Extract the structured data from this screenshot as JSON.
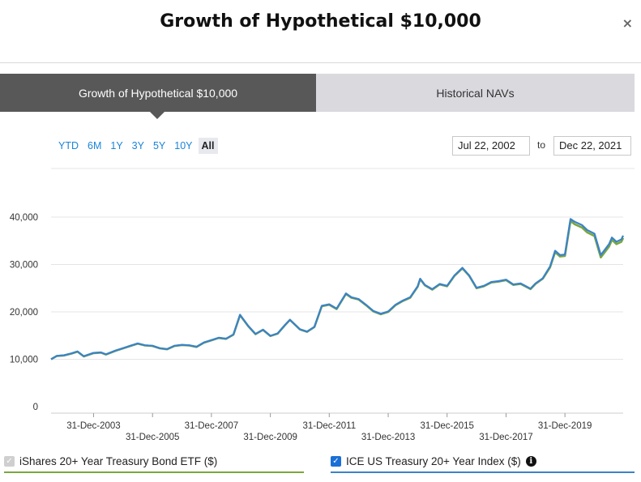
{
  "modal": {
    "title": "Growth of Hypothetical $10,000",
    "close": "×"
  },
  "tabs": [
    {
      "label": "Growth of Hypothetical $10,000",
      "active": true
    },
    {
      "label": "Historical NAVs",
      "active": false
    }
  ],
  "range": {
    "buttons": [
      "YTD",
      "6M",
      "1Y",
      "3Y",
      "5Y",
      "10Y",
      "All"
    ],
    "selected": "All"
  },
  "dates": {
    "from": "Jul 22, 2002",
    "separator": "to",
    "to": "Dec 22, 2021"
  },
  "legend": [
    {
      "label": "iShares 20+ Year Treasury Bond ETF ($)",
      "checked": true,
      "disabled": true,
      "color": "#7aa640"
    },
    {
      "label": "ICE US Treasury 20+ Year Index ($)",
      "checked": true,
      "disabled": false,
      "color": "#3b82c9",
      "info_icon": "info-icon"
    }
  ],
  "colors": {
    "etf": "#7aa640",
    "index": "#3b82c9",
    "tab_active": "#585858",
    "tab_inactive": "#d9d9de",
    "link": "#1a84d8"
  },
  "chart_data": {
    "type": "line",
    "title": "",
    "xlabel": "",
    "ylabel": "",
    "xlim": [
      "2002-07-22",
      "2021-12-22"
    ],
    "ylim": [
      0,
      40000
    ],
    "grid": true,
    "yticks": [
      "0",
      "10,000",
      "20,000",
      "30,000",
      "40,000"
    ],
    "xticks": [
      {
        "label": "31-Dec-2003",
        "x": "2003-12-31"
      },
      {
        "label": "31-Dec-2005",
        "x": "2005-12-31"
      },
      {
        "label": "31-Dec-2007",
        "x": "2007-12-31"
      },
      {
        "label": "31-Dec-2009",
        "x": "2009-12-31"
      },
      {
        "label": "31-Dec-2011",
        "x": "2011-12-31"
      },
      {
        "label": "31-Dec-2013",
        "x": "2013-12-31"
      },
      {
        "label": "31-Dec-2015",
        "x": "2015-12-31"
      },
      {
        "label": "31-Dec-2017",
        "x": "2017-12-31"
      },
      {
        "label": "31-Dec-2019",
        "x": "2019-12-31"
      }
    ],
    "x": [
      "2002-07-22",
      "2002-10-01",
      "2003-01-01",
      "2003-04-01",
      "2003-06-15",
      "2003-09-01",
      "2003-12-31",
      "2004-04-01",
      "2004-06-01",
      "2004-09-30",
      "2004-12-31",
      "2005-03-31",
      "2005-06-30",
      "2005-09-30",
      "2005-12-31",
      "2006-03-31",
      "2006-06-30",
      "2006-09-30",
      "2006-12-31",
      "2007-03-31",
      "2007-06-30",
      "2007-09-30",
      "2007-12-31",
      "2008-03-31",
      "2008-06-30",
      "2008-09-30",
      "2008-12-20",
      "2009-03-31",
      "2009-06-30",
      "2009-09-30",
      "2009-12-31",
      "2010-03-31",
      "2010-06-30",
      "2010-08-31",
      "2010-12-31",
      "2011-03-31",
      "2011-06-30",
      "2011-09-30",
      "2011-12-31",
      "2012-03-31",
      "2012-07-25",
      "2012-09-30",
      "2012-12-31",
      "2013-03-31",
      "2013-06-30",
      "2013-09-30",
      "2013-12-31",
      "2014-03-31",
      "2014-06-30",
      "2014-09-30",
      "2014-12-31",
      "2015-01-31",
      "2015-03-31",
      "2015-06-30",
      "2015-09-30",
      "2015-12-31",
      "2016-03-31",
      "2016-07-08",
      "2016-09-30",
      "2016-12-31",
      "2017-03-31",
      "2017-06-30",
      "2017-09-30",
      "2017-12-31",
      "2018-03-31",
      "2018-06-30",
      "2018-10-31",
      "2018-12-31",
      "2019-03-31",
      "2019-06-30",
      "2019-08-31",
      "2019-10-31",
      "2019-12-31",
      "2020-03-09",
      "2020-04-30",
      "2020-07-31",
      "2020-09-30",
      "2020-12-31",
      "2021-03-20",
      "2021-06-30",
      "2021-08-04",
      "2021-09-30",
      "2021-11-30",
      "2021-12-22"
    ],
    "series": [
      {
        "name": "iShares 20+ Year Treasury Bond ETF ($)",
        "color": "#7aa640",
        "values": [
          10000,
          10700,
          10800,
          11200,
          11600,
          10600,
          11300,
          11400,
          11000,
          11800,
          12300,
          12800,
          13300,
          12900,
          12800,
          12300,
          12100,
          12800,
          13000,
          12900,
          12600,
          13500,
          14000,
          14500,
          14300,
          15200,
          19300,
          17000,
          15300,
          16200,
          14900,
          15400,
          17200,
          18300,
          16300,
          15800,
          16800,
          21200,
          21500,
          20600,
          23800,
          23000,
          22600,
          21400,
          20100,
          19500,
          20000,
          21400,
          22300,
          23000,
          25300,
          26900,
          25600,
          24700,
          25800,
          25400,
          27600,
          29200,
          27600,
          25000,
          25400,
          26200,
          26400,
          26700,
          25700,
          25900,
          24800,
          25900,
          27000,
          29400,
          32600,
          31700,
          31800,
          39200,
          38500,
          37800,
          36800,
          36000,
          31500,
          33800,
          35200,
          34300,
          34800,
          35600
        ]
      },
      {
        "name": "ICE US Treasury 20+ Year Index ($)",
        "color": "#3b82c9",
        "values": [
          10000,
          10700,
          10850,
          11250,
          11650,
          10650,
          11350,
          11450,
          11050,
          11850,
          12350,
          12850,
          13350,
          12950,
          12850,
          12350,
          12150,
          12850,
          13050,
          12950,
          12650,
          13550,
          14050,
          14550,
          14350,
          15250,
          19400,
          17050,
          15350,
          16250,
          14950,
          15450,
          17250,
          18350,
          16350,
          15850,
          16850,
          21300,
          21600,
          20700,
          23900,
          23100,
          22700,
          21500,
          20200,
          19600,
          20100,
          21500,
          22400,
          23100,
          25400,
          27000,
          25700,
          24800,
          25900,
          25500,
          27700,
          29300,
          27700,
          25100,
          25500,
          26300,
          26500,
          26800,
          25800,
          26000,
          24900,
          26000,
          27100,
          29600,
          32900,
          32000,
          32100,
          39600,
          39000,
          38300,
          37300,
          36500,
          32000,
          34300,
          35700,
          34800,
          35300,
          36100
        ]
      }
    ]
  }
}
